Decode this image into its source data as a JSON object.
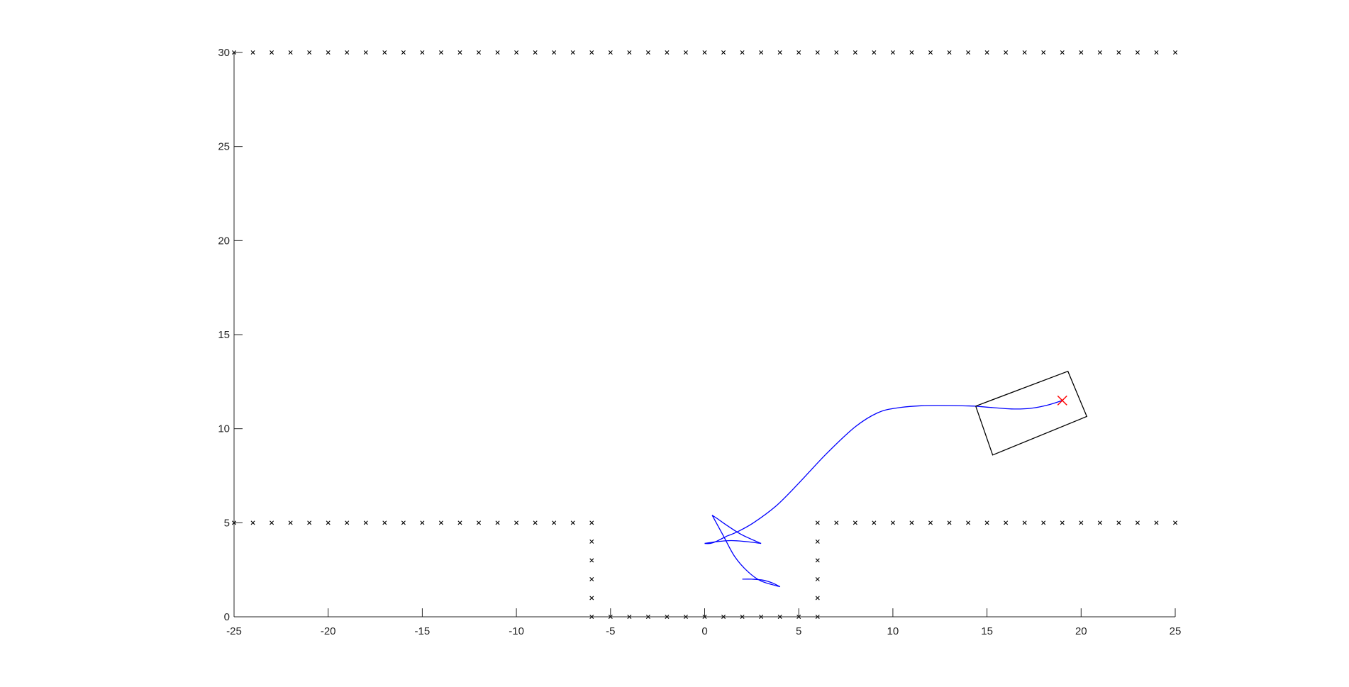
{
  "chart_data": {
    "type": "scatter",
    "xlim": [
      -25,
      25
    ],
    "ylim": [
      0,
      30
    ],
    "x_ticks": [
      -25,
      -20,
      -15,
      -10,
      -5,
      0,
      5,
      10,
      15,
      20,
      25
    ],
    "y_ticks": [
      0,
      5,
      10,
      15,
      20,
      25,
      30
    ],
    "grid": false,
    "colors": {
      "axes": "#262626",
      "obstacles": "#000000",
      "path": "#0000ff",
      "vehicle": "#000000",
      "target": "#ff0000"
    },
    "obstacle_marker": "x",
    "obstacle_rows": [
      {
        "y": 30,
        "x_from": -25,
        "x_to": 25,
        "step": 1
      },
      {
        "y": 5,
        "x_from": -25,
        "x_to": -6,
        "step": 1
      },
      {
        "y": 5,
        "x_from": 6,
        "x_to": 25,
        "step": 1
      },
      {
        "y": 0,
        "x_from": -6,
        "x_to": 6,
        "step": 1
      }
    ],
    "obstacle_columns": [
      {
        "x": -6,
        "y_from": 1,
        "y_to": 4,
        "step": 1
      },
      {
        "x": 6,
        "y_from": 1,
        "y_to": 4,
        "step": 1
      }
    ],
    "path_segments": [
      {
        "x": [
          19.0,
          18.2,
          17.3,
          16.3,
          15.3,
          14.4
        ],
        "y": [
          11.5,
          11.25,
          11.08,
          11.05,
          11.12,
          11.2
        ]
      },
      {
        "x": [
          14.4,
          13.0,
          11.5,
          10.2,
          9.2,
          8.0,
          6.5,
          5.0,
          3.8,
          2.6,
          1.7,
          1.2
        ],
        "y": [
          11.2,
          11.23,
          11.22,
          11.1,
          10.85,
          10.1,
          8.7,
          7.1,
          5.9,
          5.0,
          4.5,
          4.3
        ]
      },
      {
        "x": [
          1.2,
          0.9,
          0.6,
          0.3,
          0.0
        ],
        "y": [
          4.3,
          4.15,
          4.0,
          3.9,
          3.9
        ]
      },
      {
        "x": [
          0.0,
          0.7,
          1.4,
          2.2,
          3.0
        ],
        "y": [
          3.9,
          4.0,
          4.05,
          4.0,
          3.9
        ]
      },
      {
        "x": [
          3.0,
          2.0,
          1.2,
          0.7,
          0.4
        ],
        "y": [
          3.9,
          4.35,
          4.85,
          5.2,
          5.4
        ]
      },
      {
        "x": [
          0.4,
          1.0,
          1.6,
          2.3,
          3.0,
          4.0
        ],
        "y": [
          5.4,
          4.3,
          3.2,
          2.4,
          1.9,
          1.6
        ]
      },
      {
        "x": [
          4.0,
          3.6,
          3.1,
          2.5,
          2.0
        ],
        "y": [
          1.6,
          1.8,
          1.95,
          2.0,
          2.0
        ]
      }
    ],
    "vehicle_outline": {
      "x": [
        14.4,
        19.3,
        20.3,
        15.3,
        14.4
      ],
      "y": [
        11.2,
        13.05,
        10.65,
        8.6,
        11.2
      ]
    },
    "target": {
      "x": 19.0,
      "y": 11.5,
      "marker": "x"
    }
  }
}
